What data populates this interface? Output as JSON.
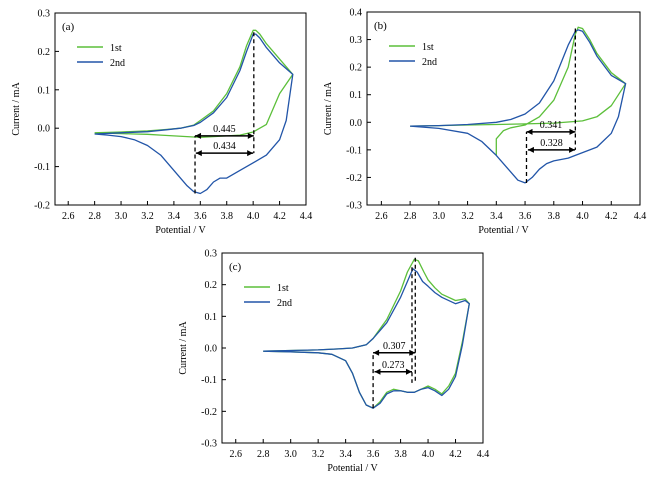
{
  "figure": {
    "series_colors": {
      "1st": "#5cbf3a",
      "2nd": "#2255a8"
    },
    "axis_color": "#000000"
  },
  "chart_data": [
    {
      "type": "line",
      "panel_label": "(a)",
      "xlabel": "Potential / V",
      "ylabel": "Current / mA",
      "xlim": [
        2.5,
        4.4
      ],
      "ylim": [
        -0.2,
        0.3
      ],
      "xticks": [
        "2.6",
        "2.8",
        "3.0",
        "3.2",
        "3.4",
        "3.6",
        "3.8",
        "4.0",
        "4.2",
        "4.4"
      ],
      "yticks": [
        "-0.2",
        "-0.1",
        "0.0",
        "0.1",
        "0.2",
        "0.3"
      ],
      "legend": {
        "position": "top-left"
      },
      "series": [
        {
          "name": "1st",
          "color": "#5cbf3a",
          "x": [
            2.8,
            3.0,
            3.2,
            3.35,
            3.45,
            3.55,
            3.6,
            3.7,
            3.8,
            3.9,
            3.95,
            4.0,
            4.02,
            4.05,
            4.1,
            4.2,
            4.3,
            4.3,
            4.2,
            4.1,
            4.0,
            3.9,
            3.8,
            3.7,
            3.6,
            3.5,
            3.4,
            3.3,
            3.2,
            3.1,
            3.0,
            2.9,
            2.8
          ],
          "y": [
            -0.012,
            -0.01,
            -0.007,
            -0.003,
            0.0,
            0.008,
            0.02,
            0.045,
            0.09,
            0.16,
            0.215,
            0.255,
            0.255,
            0.245,
            0.22,
            0.18,
            0.14,
            0.14,
            0.09,
            0.01,
            -0.01,
            -0.018,
            -0.02,
            -0.022,
            -0.024,
            -0.022,
            -0.02,
            -0.018,
            -0.016,
            -0.015,
            -0.014,
            -0.013,
            -0.012
          ]
        },
        {
          "name": "2nd",
          "color": "#2255a8",
          "x": [
            2.8,
            3.0,
            3.2,
            3.35,
            3.45,
            3.55,
            3.6,
            3.7,
            3.8,
            3.9,
            3.95,
            4.0,
            4.02,
            4.05,
            4.1,
            4.2,
            4.3,
            4.3,
            4.25,
            4.2,
            4.1,
            4.0,
            3.9,
            3.8,
            3.75,
            3.7,
            3.65,
            3.6,
            3.55,
            3.5,
            3.4,
            3.3,
            3.2,
            3.1,
            3.0,
            2.9,
            2.8
          ],
          "y": [
            -0.015,
            -0.012,
            -0.009,
            -0.004,
            0.0,
            0.007,
            0.015,
            0.04,
            0.08,
            0.15,
            0.2,
            0.245,
            0.245,
            0.235,
            0.21,
            0.17,
            0.14,
            0.14,
            0.02,
            -0.03,
            -0.07,
            -0.09,
            -0.11,
            -0.13,
            -0.13,
            -0.14,
            -0.16,
            -0.17,
            -0.165,
            -0.15,
            -0.11,
            -0.07,
            -0.045,
            -0.03,
            -0.022,
            -0.018,
            -0.015
          ]
        }
      ],
      "annotations": [
        {
          "text": "0.445",
          "x_from": 3.56,
          "x_to": 4.005,
          "y": -0.02
        },
        {
          "text": "0.434",
          "x_from": 3.566,
          "x_to": 4.0,
          "y": -0.065
        }
      ],
      "dashed_verticals": [
        {
          "x": 3.56,
          "y_from": -0.17,
          "y_to": -0.02
        },
        {
          "x": 4.005,
          "y_from": 0.25,
          "y_to": -0.065
        }
      ]
    },
    {
      "type": "line",
      "panel_label": "(b)",
      "xlabel": "Potential / V",
      "ylabel": "Current / mA",
      "xlim": [
        2.5,
        4.4
      ],
      "ylim": [
        -0.3,
        0.4
      ],
      "xticks": [
        "2.6",
        "2.8",
        "3.0",
        "3.2",
        "3.4",
        "3.6",
        "3.8",
        "4.0",
        "4.2",
        "4.4"
      ],
      "yticks": [
        "-0.3",
        "-0.2",
        "-0.1",
        "0.0",
        "0.1",
        "0.2",
        "0.3",
        "0.4"
      ],
      "legend": {
        "position": "top-left"
      },
      "series": [
        {
          "name": "1st",
          "color": "#5cbf3a",
          "x": [
            3.4,
            3.4,
            3.45,
            3.5,
            3.6,
            3.7,
            3.8,
            3.9,
            3.95,
            3.97,
            4.0,
            4.05,
            4.1,
            4.2,
            4.3,
            4.3,
            4.2,
            4.1,
            4.0,
            3.8,
            3.6,
            3.4,
            3.2,
            3.0,
            2.8
          ],
          "y": [
            -0.12,
            -0.06,
            -0.03,
            -0.02,
            -0.01,
            0.02,
            0.08,
            0.2,
            0.32,
            0.345,
            0.34,
            0.3,
            0.25,
            0.18,
            0.14,
            0.14,
            0.06,
            0.02,
            0.005,
            -0.003,
            -0.006,
            -0.008,
            -0.01,
            -0.012,
            -0.014
          ]
        },
        {
          "name": "2nd",
          "color": "#2255a8",
          "x": [
            2.8,
            3.0,
            3.2,
            3.4,
            3.5,
            3.6,
            3.7,
            3.8,
            3.9,
            3.95,
            3.97,
            4.0,
            4.05,
            4.1,
            4.2,
            4.3,
            4.3,
            4.25,
            4.2,
            4.1,
            4.0,
            3.95,
            3.9,
            3.8,
            3.75,
            3.7,
            3.65,
            3.6,
            3.55,
            3.5,
            3.4,
            3.3,
            3.2,
            3.0,
            2.8
          ],
          "y": [
            -0.014,
            -0.012,
            -0.008,
            0.0,
            0.01,
            0.03,
            0.07,
            0.15,
            0.28,
            0.33,
            0.335,
            0.33,
            0.29,
            0.24,
            0.17,
            0.14,
            0.14,
            0.02,
            -0.04,
            -0.09,
            -0.11,
            -0.12,
            -0.13,
            -0.14,
            -0.15,
            -0.17,
            -0.2,
            -0.22,
            -0.21,
            -0.18,
            -0.12,
            -0.07,
            -0.04,
            -0.022,
            -0.014
          ]
        }
      ],
      "annotations": [
        {
          "text": "0.341",
          "x_from": 3.61,
          "x_to": 3.951,
          "y": -0.035
        },
        {
          "text": "0.328",
          "x_from": 3.62,
          "x_to": 3.948,
          "y": -0.1
        }
      ],
      "dashed_verticals": [
        {
          "x": 3.61,
          "y_from": -0.22,
          "y_to": -0.035
        },
        {
          "x": 3.95,
          "y_from": 0.34,
          "y_to": -0.1
        }
      ]
    },
    {
      "type": "line",
      "panel_label": "(c)",
      "xlabel": "Potential / V",
      "ylabel": "Current / mA",
      "xlim": [
        2.5,
        4.4
      ],
      "ylim": [
        -0.3,
        0.3
      ],
      "xticks": [
        "2.6",
        "2.8",
        "3.0",
        "3.2",
        "3.4",
        "3.6",
        "3.8",
        "4.0",
        "4.2",
        "4.4"
      ],
      "yticks": [
        "-0.3",
        "-0.2",
        "-0.1",
        "0.0",
        "0.1",
        "0.2",
        "0.3"
      ],
      "legend": {
        "position": "top-left"
      },
      "series": [
        {
          "name": "1st",
          "color": "#5cbf3a",
          "x": [
            2.8,
            3.0,
            3.2,
            3.35,
            3.45,
            3.55,
            3.6,
            3.7,
            3.8,
            3.85,
            3.9,
            3.93,
            3.97,
            4.0,
            4.05,
            4.1,
            4.2,
            4.27,
            4.3,
            4.3,
            4.25,
            4.2,
            4.15,
            4.1,
            4.05,
            4.0,
            3.95,
            3.9,
            3.85,
            3.8,
            3.75,
            3.7,
            3.65,
            3.6,
            3.55,
            3.5,
            3.45,
            3.4,
            3.3,
            3.2,
            3.0,
            2.8
          ],
          "y": [
            -0.01,
            -0.008,
            -0.006,
            -0.003,
            0.0,
            0.01,
            0.03,
            0.09,
            0.18,
            0.24,
            0.28,
            0.275,
            0.24,
            0.215,
            0.19,
            0.17,
            0.15,
            0.155,
            0.14,
            0.14,
            0.02,
            -0.08,
            -0.12,
            -0.145,
            -0.13,
            -0.12,
            -0.13,
            -0.14,
            -0.14,
            -0.135,
            -0.13,
            -0.14,
            -0.17,
            -0.19,
            -0.18,
            -0.14,
            -0.08,
            -0.04,
            -0.02,
            -0.015,
            -0.012,
            -0.01
          ]
        },
        {
          "name": "2nd",
          "color": "#2255a8",
          "x": [
            2.8,
            3.0,
            3.2,
            3.35,
            3.45,
            3.55,
            3.6,
            3.7,
            3.8,
            3.85,
            3.89,
            3.92,
            3.96,
            4.0,
            4.05,
            4.1,
            4.2,
            4.27,
            4.3,
            4.3,
            4.25,
            4.2,
            4.15,
            4.1,
            4.05,
            4.0,
            3.95,
            3.9,
            3.85,
            3.8,
            3.75,
            3.7,
            3.65,
            3.6,
            3.55,
            3.5,
            3.45,
            3.4,
            3.3,
            3.2,
            3.0,
            2.8
          ],
          "y": [
            -0.01,
            -0.008,
            -0.006,
            -0.003,
            0.0,
            0.01,
            0.03,
            0.08,
            0.16,
            0.21,
            0.25,
            0.24,
            0.21,
            0.195,
            0.175,
            0.16,
            0.14,
            0.15,
            0.14,
            0.14,
            0.01,
            -0.09,
            -0.13,
            -0.15,
            -0.135,
            -0.125,
            -0.13,
            -0.14,
            -0.14,
            -0.135,
            -0.135,
            -0.145,
            -0.175,
            -0.19,
            -0.18,
            -0.14,
            -0.08,
            -0.04,
            -0.02,
            -0.015,
            -0.012,
            -0.01
          ]
        }
      ],
      "annotations": [
        {
          "text": "0.307",
          "x_from": 3.6,
          "x_to": 3.907,
          "y": -0.015
        },
        {
          "text": "0.273",
          "x_from": 3.61,
          "x_to": 3.883,
          "y": -0.075
        }
      ],
      "dashed_verticals": [
        {
          "x": 3.6,
          "y_from": -0.19,
          "y_to": -0.015
        },
        {
          "x": 3.883,
          "y_from": 0.255,
          "y_to": -0.11
        },
        {
          "x": 3.907,
          "y_from": 0.285,
          "y_to": -0.11
        }
      ]
    }
  ]
}
